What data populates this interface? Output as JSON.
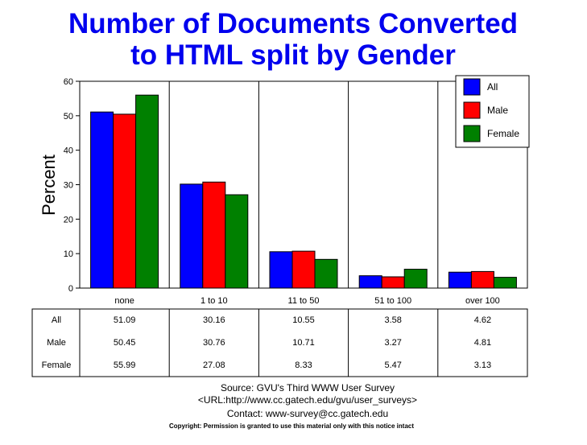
{
  "chart_data": {
    "type": "bar",
    "title_lines": [
      "Number of Documents Converted",
      "to HTML split by Gender"
    ],
    "ylabel": "Percent",
    "xlabel": "",
    "ylim": [
      0,
      60
    ],
    "yticks": [
      0,
      10,
      20,
      30,
      40,
      50,
      60
    ],
    "grid": "vertical category separators",
    "legend_position": "top-right",
    "categories": [
      "none",
      "1 to 10",
      "11 to 50",
      "51 to 100",
      "over 100"
    ],
    "series": [
      {
        "name": "All",
        "color": "#0000ff",
        "values": [
          51.09,
          30.16,
          10.55,
          3.58,
          4.62
        ],
        "labels": [
          "51.09",
          "30.16",
          "10.55",
          "3.58",
          "4.62"
        ]
      },
      {
        "name": "Male",
        "color": "#ff0000",
        "values": [
          50.45,
          30.76,
          10.71,
          3.27,
          4.81
        ],
        "labels": [
          "50.45",
          "30.76",
          "10.71",
          "3.27",
          "4.81"
        ]
      },
      {
        "name": "Female",
        "color": "#008000",
        "values": [
          55.99,
          27.08,
          8.33,
          5.47,
          3.13
        ],
        "labels": [
          "55.99",
          "27.08",
          "8.33",
          "5.47",
          "3.13"
        ]
      }
    ]
  },
  "footer": {
    "source": "Source: GVU's Third WWW User Survey",
    "url": "<URL:http://www.cc.gatech.edu/gvu/user_surveys>",
    "contact": "Contact: www-survey@cc.gatech.edu",
    "copyright": "Copyright: Permission is granted to use this material only with this notice intact"
  }
}
